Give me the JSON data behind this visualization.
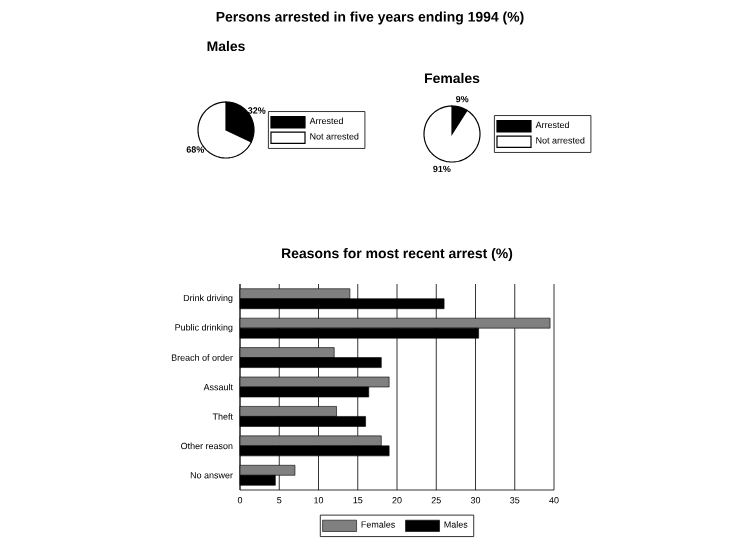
{
  "chart_data": [
    {
      "type": "pie",
      "title": "Persons arrested in five years ending 1994 (%)",
      "subtitle": "Males",
      "categories": [
        "Arrested",
        "Not arrested"
      ],
      "values": [
        32,
        68
      ],
      "colors": [
        "#000000",
        "#ffffff"
      ],
      "value_labels": [
        "32%",
        "68%"
      ],
      "legend": "right"
    },
    {
      "type": "pie",
      "title": "Females",
      "categories": [
        "Arrested",
        "Not arrested"
      ],
      "values": [
        9,
        91
      ],
      "colors": [
        "#000000",
        "#ffffff"
      ],
      "value_labels": [
        "9%",
        "91%"
      ],
      "legend": "right"
    },
    {
      "type": "bar",
      "orientation": "horizontal",
      "title": "Reasons for most recent arrest (%)",
      "categories": [
        "Drink driving",
        "Public drinking",
        "Breach of order",
        "Assault",
        "Theft",
        "Other reason",
        "No answer"
      ],
      "series": [
        {
          "name": "Females",
          "color": "#808080",
          "values": [
            14,
            39.5,
            12,
            19,
            12.3,
            18,
            7
          ]
        },
        {
          "name": "Males",
          "color": "#000000",
          "values": [
            26,
            30.4,
            18,
            16.4,
            16,
            19,
            4.5
          ]
        }
      ],
      "xlim": [
        0,
        40
      ],
      "xticks": [
        0,
        5,
        10,
        15,
        20,
        25,
        30,
        35,
        40
      ],
      "grid": "x",
      "legend": "bottom"
    }
  ]
}
